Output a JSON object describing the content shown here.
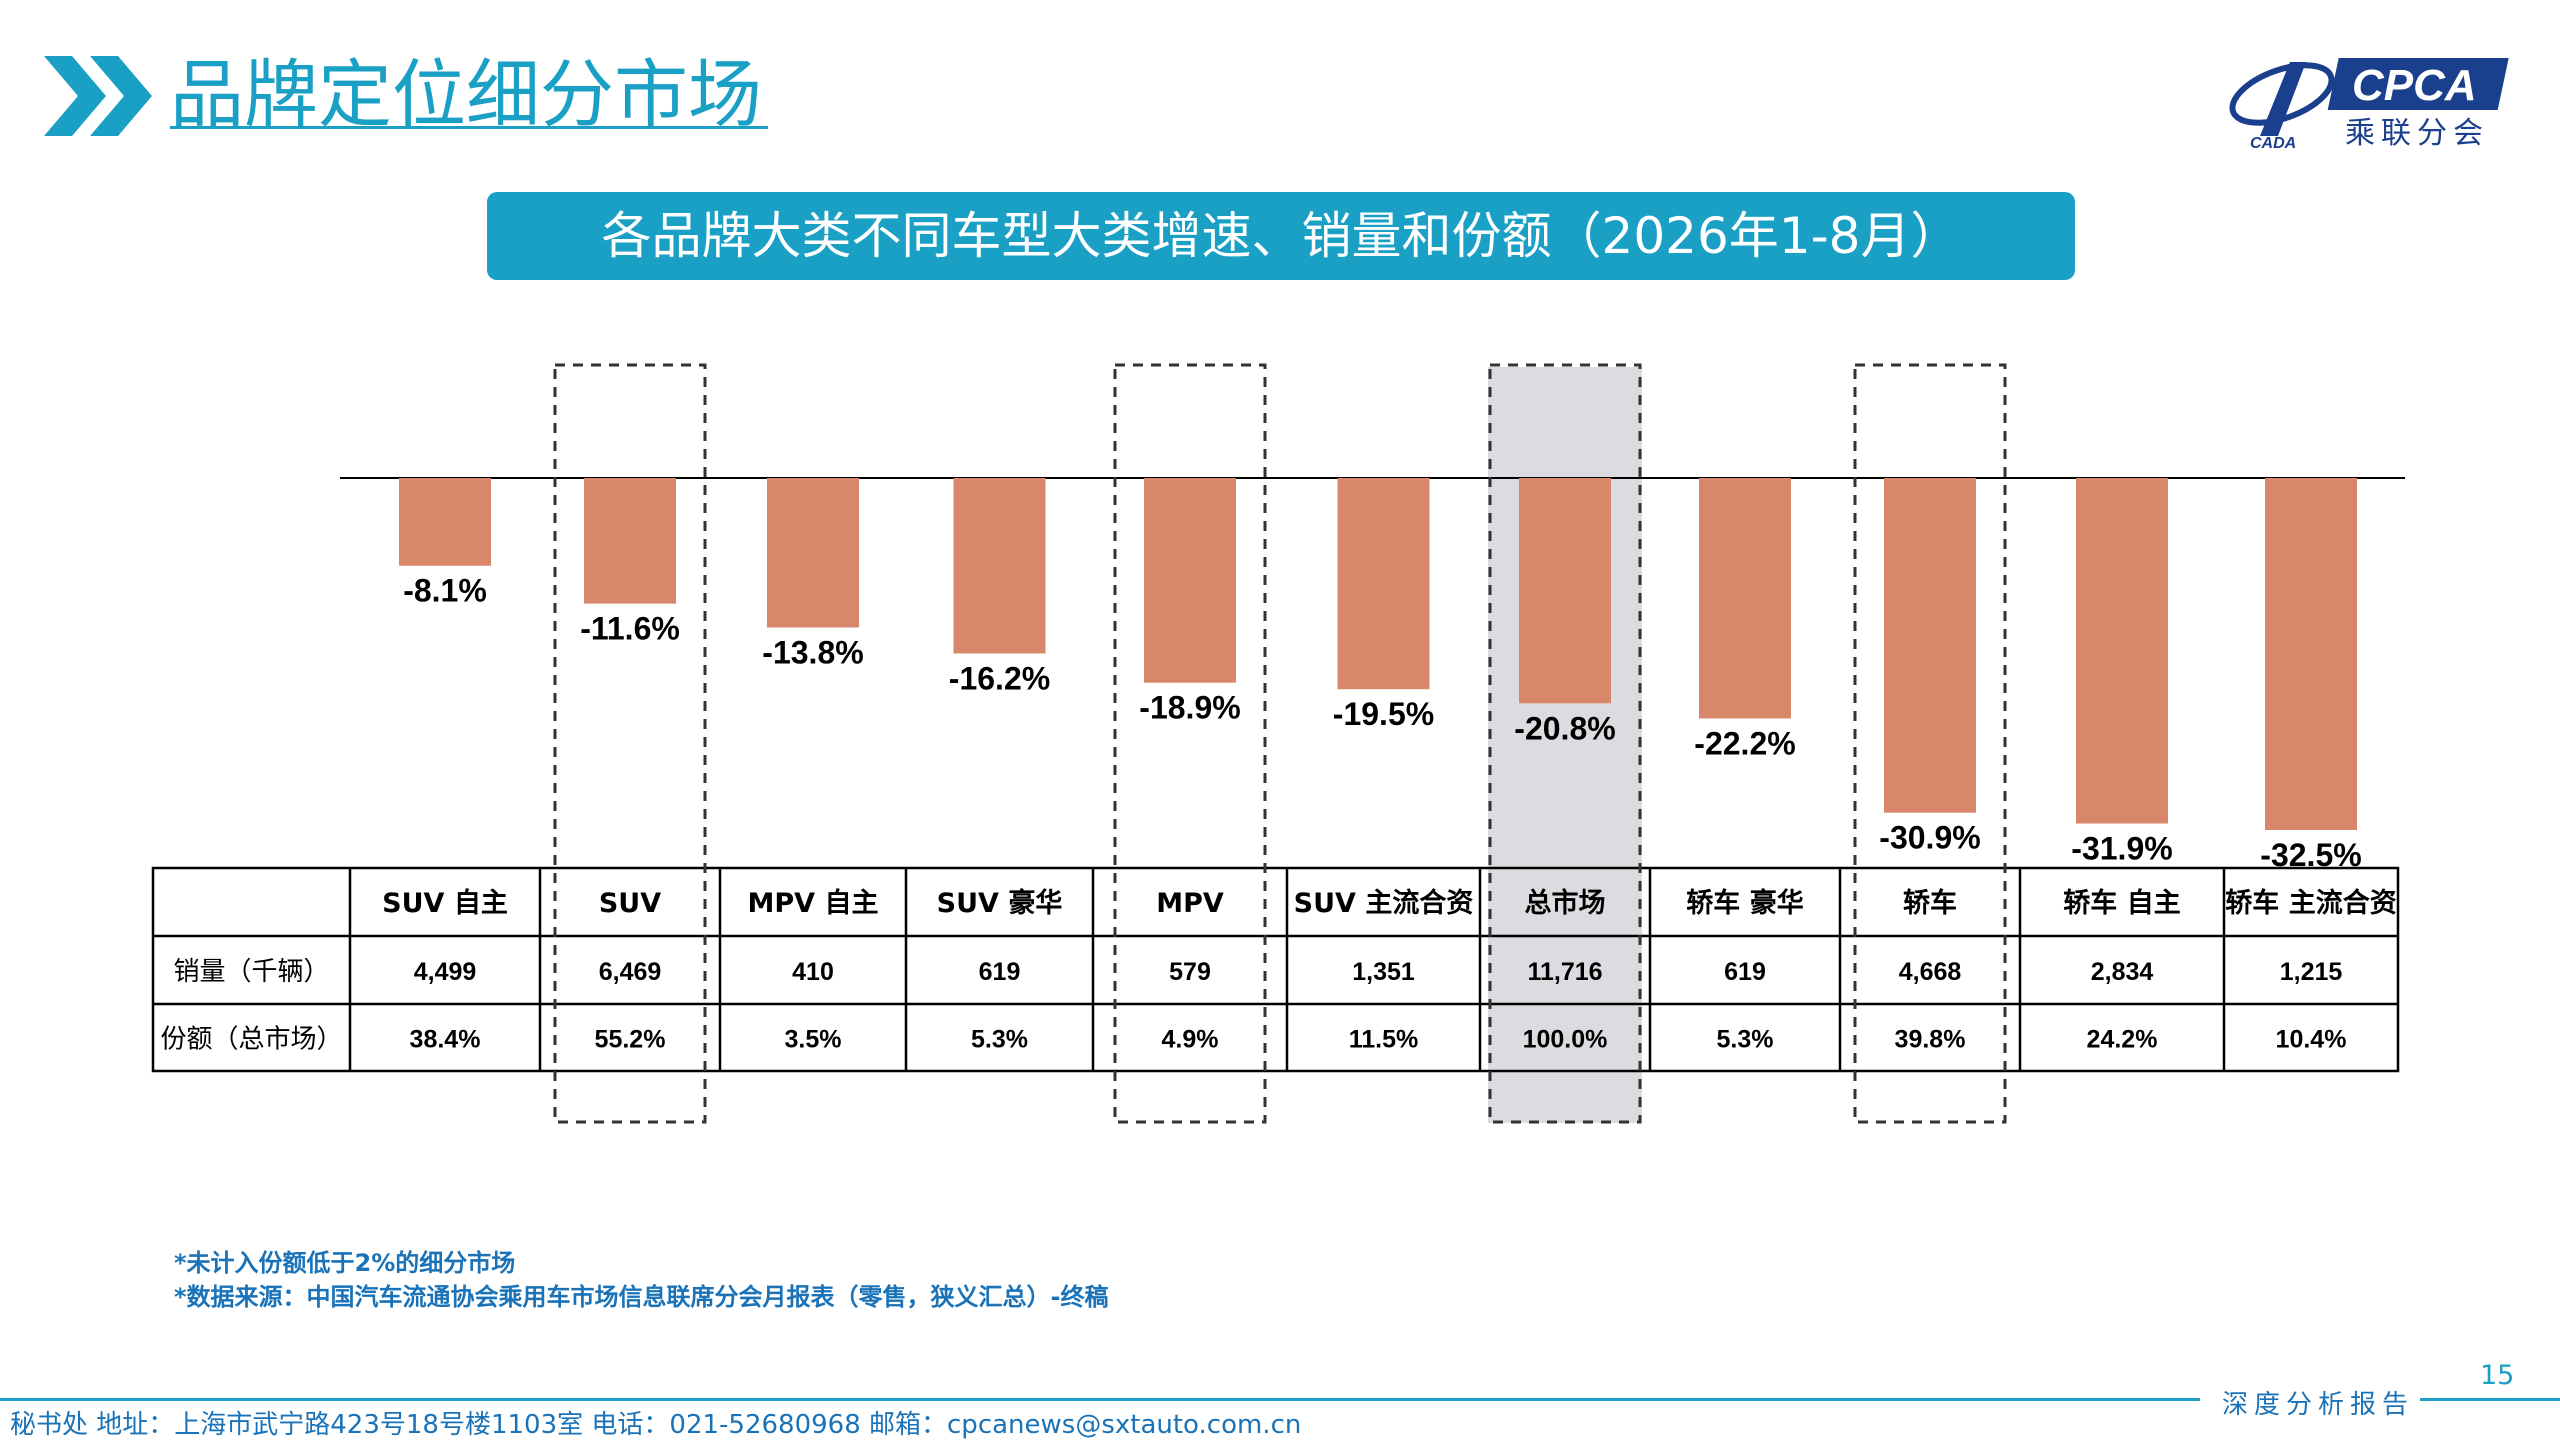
{
  "header": {
    "title": "品牌定位细分市场",
    "logo_text": "CPCA",
    "logo_subtext": "乘联分会",
    "logo_small": "CADA"
  },
  "banner_title": "各品牌大类不同车型大类增速、销量和份额（2026年1-8月）",
  "chart_data": {
    "type": "bar",
    "title": "各品牌大类不同车型大类增速、销量和份额（2026年1-8月）",
    "categories": [
      "SUV 自主",
      "SUV",
      "MPV 自主",
      "SUV 豪华",
      "MPV",
      "SUV 主流合资",
      "总市场",
      "轿车 豪华",
      "轿车",
      "轿车 自主",
      "轿车 主流合资"
    ],
    "values": [
      -8.1,
      -11.6,
      -13.8,
      -16.2,
      -18.9,
      -19.5,
      -20.8,
      -22.2,
      -30.9,
      -31.9,
      -32.5
    ],
    "value_labels": [
      "-8.1%",
      "-11.6%",
      "-13.8%",
      "-16.2%",
      "-18.9%",
      "-19.5%",
      "-20.8%",
      "-22.2%",
      "-30.9%",
      "-31.9%",
      "-32.5%"
    ],
    "unit": "%",
    "ylim": [
      -35,
      0
    ],
    "bar_color": "#d9876a",
    "highlighted_categories": [
      "SUV",
      "MPV",
      "总市场",
      "轿车"
    ],
    "shaded_category": "总市场",
    "table": {
      "rows": [
        {
          "label": "销量（千辆）",
          "values": [
            "4,499",
            "6,469",
            "410",
            "619",
            "579",
            "1,351",
            "11,716",
            "619",
            "4,668",
            "2,834",
            "1,215"
          ]
        },
        {
          "label": "份额（总市场）",
          "values": [
            "38.4%",
            "55.2%",
            "3.5%",
            "5.3%",
            "4.9%",
            "11.5%",
            "100.0%",
            "5.3%",
            "39.8%",
            "24.2%",
            "10.4%"
          ]
        }
      ]
    }
  },
  "notes": [
    "*未计入份额低于2%的细分市场",
    "*数据来源：中国汽车流通协会乘用车市场信息联席分会月报表（零售，狭义汇总）-终稿"
  ],
  "page_number": "15",
  "footer": {
    "tagline": "深度分析报告",
    "contact": "秘书处  地址：上海市武宁路423号18号楼1103室  电话：021-52680968  邮箱：cpcanews@sxtauto.com.cn"
  },
  "colors": {
    "accent": "#1aa0c4",
    "note_text": "#1a73b8",
    "bar": "#d9876a",
    "shade": "#dcdce0"
  }
}
